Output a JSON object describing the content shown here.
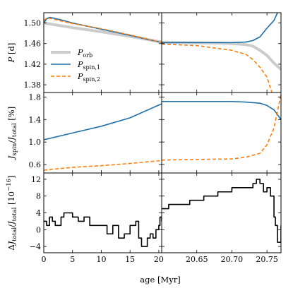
{
  "chart_data": {
    "type": "line",
    "xlabel": "age [Myr]",
    "colors": {
      "orb": "#cccccc",
      "spin1": "#1f6fa8",
      "spin2": "#ff7f0e",
      "dJ": "#000000"
    },
    "x_left": {
      "range": [
        0,
        20.5
      ],
      "ticks": [
        0,
        5,
        10,
        15,
        20
      ],
      "tick_labels": [
        "0",
        "5",
        "10",
        "15",
        "20"
      ]
    },
    "x_right": {
      "range": [
        20.6,
        20.77
      ],
      "ticks": [
        20.65,
        20.7,
        20.75
      ],
      "tick_labels": [
        "20.65",
        "20.70",
        "20.75"
      ]
    },
    "panels": [
      {
        "ylabel": "P [d]",
        "ylim": [
          1.365,
          1.52
        ],
        "yticks": [
          1.38,
          1.42,
          1.46,
          1.5
        ],
        "ytick_labels": [
          "1.38",
          "1.42",
          "1.46",
          "1.50"
        ],
        "legend": {
          "placement": "center-left",
          "entries": [
            {
              "key": "orb",
              "main": "P",
              "sub": "orb"
            },
            {
              "key": "spin1",
              "main": "P",
              "sub": "spin,1"
            },
            {
              "key": "spin2",
              "main": "P",
              "sub": "spin,2"
            }
          ]
        },
        "series": [
          {
            "key": "orb",
            "width": 4,
            "dash": "",
            "left": [
              [
                0,
                1.5
              ],
              [
                5,
                1.491
              ],
              [
                10,
                1.483
              ],
              [
                15,
                1.474
              ],
              [
                20.5,
                1.463
              ]
            ],
            "right": [
              [
                20.6,
                1.462
              ],
              [
                20.68,
                1.461
              ],
              [
                20.7,
                1.46
              ],
              [
                20.72,
                1.458
              ],
              [
                20.73,
                1.455
              ],
              [
                20.74,
                1.447
              ],
              [
                20.75,
                1.437
              ],
              [
                20.76,
                1.422
              ],
              [
                20.77,
                1.41
              ]
            ]
          },
          {
            "key": "spin1",
            "width": 1.6,
            "dash": "",
            "left": [
              [
                0,
                1.5
              ],
              [
                0.5,
                1.508
              ],
              [
                1,
                1.511
              ],
              [
                1.5,
                1.51
              ],
              [
                3,
                1.506
              ],
              [
                5,
                1.5
              ],
              [
                10,
                1.488
              ],
              [
                15,
                1.476
              ],
              [
                20.5,
                1.462
              ]
            ],
            "right": [
              [
                20.6,
                1.462
              ],
              [
                20.7,
                1.462
              ],
              [
                20.72,
                1.463
              ],
              [
                20.73,
                1.466
              ],
              [
                20.74,
                1.473
              ],
              [
                20.75,
                1.49
              ],
              [
                20.76,
                1.505
              ],
              [
                20.765,
                1.52
              ]
            ]
          },
          {
            "key": "spin2",
            "width": 1.6,
            "dash": "5,3",
            "left": [
              [
                0,
                1.505
              ],
              [
                0.6,
                1.51
              ],
              [
                1.5,
                1.508
              ],
              [
                3,
                1.504
              ],
              [
                5,
                1.499
              ],
              [
                10,
                1.489
              ],
              [
                15,
                1.477
              ],
              [
                20.5,
                1.462
              ]
            ],
            "right": [
              [
                20.6,
                1.459
              ],
              [
                20.65,
                1.456
              ],
              [
                20.7,
                1.447
              ],
              [
                20.72,
                1.439
              ],
              [
                20.73,
                1.429
              ],
              [
                20.74,
                1.414
              ],
              [
                20.75,
                1.395
              ],
              [
                20.757,
                1.365
              ]
            ]
          }
        ]
      },
      {
        "ylabel": "J_spin/J_total [%]",
        "ylim": [
          0.45,
          1.88
        ],
        "yticks": [
          0.6,
          1.0,
          1.4,
          1.8
        ],
        "ytick_labels": [
          "0.6",
          "1.0",
          "1.4",
          "1.8"
        ],
        "series": [
          {
            "key": "spin1",
            "width": 1.6,
            "dash": "",
            "left": [
              [
                0,
                1.04
              ],
              [
                5,
                1.16
              ],
              [
                10,
                1.28
              ],
              [
                15,
                1.43
              ],
              [
                20.5,
                1.68
              ]
            ],
            "right": [
              [
                20.6,
                1.72
              ],
              [
                20.7,
                1.72
              ],
              [
                20.72,
                1.71
              ],
              [
                20.74,
                1.69
              ],
              [
                20.75,
                1.65
              ],
              [
                20.76,
                1.57
              ],
              [
                20.77,
                1.4
              ]
            ]
          },
          {
            "key": "spin2",
            "width": 1.6,
            "dash": "5,3",
            "left": [
              [
                0,
                0.5
              ],
              [
                5,
                0.55
              ],
              [
                10,
                0.58
              ],
              [
                15,
                0.62
              ],
              [
                20.5,
                0.67
              ]
            ],
            "right": [
              [
                20.6,
                0.68
              ],
              [
                20.7,
                0.7
              ],
              [
                20.72,
                0.73
              ],
              [
                20.74,
                0.8
              ],
              [
                20.75,
                0.95
              ],
              [
                20.76,
                1.25
              ],
              [
                20.77,
                1.85
              ]
            ]
          }
        ]
      },
      {
        "ylabel": "ΔJ_total/J_total [10^-16]",
        "ylim": [
          -5.5,
          13.5
        ],
        "yticks": [
          -4,
          0,
          4,
          8,
          12
        ],
        "ytick_labels": [
          "−4",
          "0",
          "4",
          "8",
          "12"
        ],
        "series": [
          {
            "key": "dJ",
            "width": 1.6,
            "dash": "",
            "step": true,
            "left": [
              [
                0,
                2
              ],
              [
                0.5,
                1
              ],
              [
                1,
                3
              ],
              [
                1.5,
                2
              ],
              [
                2,
                1
              ],
              [
                3,
                3
              ],
              [
                3.5,
                4
              ],
              [
                5,
                3
              ],
              [
                6,
                2
              ],
              [
                7,
                3
              ],
              [
                8,
                1
              ],
              [
                10,
                1
              ],
              [
                11,
                -1
              ],
              [
                12,
                1
              ],
              [
                13,
                -2
              ],
              [
                14,
                -1
              ],
              [
                15,
                1
              ],
              [
                16,
                2
              ],
              [
                16.5,
                -2
              ],
              [
                17,
                -4
              ],
              [
                18,
                -2
              ],
              [
                18.5,
                -1
              ],
              [
                19,
                -2
              ],
              [
                19.5,
                0
              ],
              [
                20,
                1
              ],
              [
                20.2,
                3
              ],
              [
                20.5,
                2
              ]
            ],
            "right": [
              [
                20.6,
                5
              ],
              [
                20.61,
                6
              ],
              [
                20.62,
                6
              ],
              [
                20.64,
                7
              ],
              [
                20.66,
                8
              ],
              [
                20.68,
                9
              ],
              [
                20.7,
                10
              ],
              [
                20.72,
                10
              ],
              [
                20.73,
                11
              ],
              [
                20.735,
                12
              ],
              [
                20.74,
                11
              ],
              [
                20.745,
                9
              ],
              [
                20.75,
                10
              ],
              [
                20.755,
                8
              ],
              [
                20.76,
                3
              ],
              [
                20.762,
                1
              ],
              [
                20.765,
                -3
              ],
              [
                20.77,
                1
              ]
            ]
          }
        ]
      }
    ]
  }
}
